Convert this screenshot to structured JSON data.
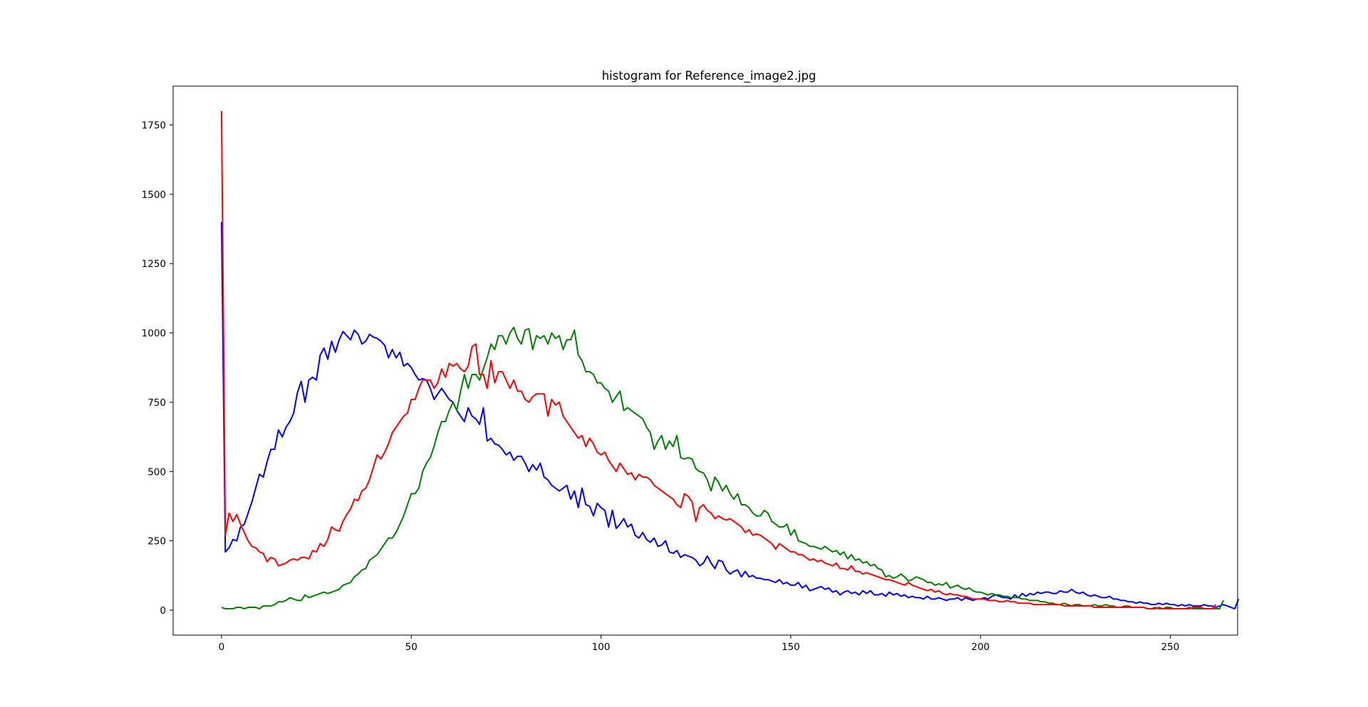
{
  "chart_data": {
    "type": "line",
    "title": "histogram for Reference_image2.jpg",
    "xlabel": "",
    "ylabel": "",
    "xlim": [
      -12.75,
      267.75
    ],
    "ylim": [
      -90,
      1890
    ],
    "xticks": [
      0,
      50,
      100,
      150,
      200,
      250
    ],
    "yticks": [
      0,
      250,
      500,
      750,
      1000,
      1250,
      1500,
      1750
    ],
    "grid": false,
    "legend": "none",
    "x": "0..255 (one value per bin)",
    "series": [
      {
        "color": "#0000ff",
        "values": [
          1400,
          210,
          225,
          255,
          250,
          300,
          310,
          350,
          390,
          440,
          490,
          480,
          535,
          580,
          580,
          650,
          625,
          660,
          680,
          710,
          785,
          825,
          750,
          830,
          840,
          830,
          920,
          945,
          905,
          970,
          930,
          975,
          1005,
          990,
          975,
          1010,
          995,
          960,
          970,
          995,
          985,
          980,
          970,
          955,
          910,
          940,
          910,
          930,
          880,
          890,
          875,
          850,
          830,
          835,
          830,
          800,
          760,
          780,
          800,
          780,
          760,
          750,
          720,
          700,
          680,
          730,
          700,
          690,
          670,
          730,
          610,
          620,
          600,
          595,
          580,
          560,
          570,
          540,
          555,
          555,
          530,
          500,
          525,
          505,
          530,
          480,
          470,
          450,
          440,
          430,
          440,
          450,
          400,
          430,
          370,
          440,
          380,
          375,
          340,
          385,
          370,
          360,
          300,
          360,
          295,
          310,
          330,
          300,
          310,
          270,
          260,
          280,
          255,
          245,
          260,
          230,
          235,
          250,
          210,
          205,
          215,
          190,
          200,
          195,
          190,
          180,
          160,
          170,
          195,
          170,
          150,
          180,
          175,
          145,
          130,
          140,
          145,
          120,
          140,
          120,
          125,
          115,
          115,
          110,
          110,
          105,
          100,
          110,
          95,
          100,
          90,
          90,
          100,
          80,
          90,
          70,
          75,
          80,
          85,
          75,
          80,
          65,
          70,
          55,
          65,
          70,
          60,
          65,
          55,
          70,
          60,
          70,
          55,
          55,
          60,
          50,
          65,
          55,
          60,
          50,
          55,
          45,
          50,
          45,
          45,
          40,
          50,
          40,
          40,
          45,
          40,
          35,
          40,
          40,
          45,
          35,
          45,
          40,
          35,
          40,
          40,
          45,
          40,
          50,
          55,
          50,
          45,
          45,
          40,
          55,
          45,
          60,
          50,
          60,
          55,
          65,
          60,
          65,
          65,
          60,
          60,
          70,
          65,
          65,
          75,
          65,
          60,
          65,
          55,
          50,
          55,
          50,
          45,
          45,
          50,
          40,
          40,
          35,
          35,
          30,
          30,
          25,
          30,
          25,
          25,
          20,
          20,
          25,
          20,
          25,
          20,
          20,
          15,
          20,
          15,
          20,
          15,
          15,
          15,
          20,
          15,
          15,
          10,
          15,
          20,
          15,
          10,
          5,
          40
        ]
      },
      {
        "color": "#008000",
        "values": [
          10,
          5,
          5,
          5,
          10,
          10,
          5,
          10,
          10,
          10,
          5,
          15,
          15,
          15,
          20,
          30,
          30,
          35,
          45,
          40,
          35,
          35,
          55,
          45,
          50,
          55,
          60,
          65,
          60,
          65,
          70,
          75,
          90,
          95,
          100,
          120,
          130,
          145,
          150,
          180,
          190,
          200,
          220,
          240,
          260,
          260,
          280,
          310,
          340,
          380,
          420,
          420,
          440,
          500,
          530,
          550,
          590,
          640,
          680,
          680,
          720,
          750,
          720,
          790,
          850,
          800,
          850,
          850,
          830,
          870,
          910,
          960,
          940,
          990,
          990,
          960,
          1000,
          1020,
          980,
          960,
          1010,
          1015,
          940,
          990,
          980,
          990,
          960,
          1000,
          980,
          990,
          940,
          975,
          975,
          1010,
          920,
          900,
          860,
          860,
          850,
          820,
          820,
          800,
          790,
          750,
          770,
          790,
          720,
          730,
          720,
          710,
          700,
          690,
          660,
          640,
          580,
          610,
          630,
          580,
          610,
          590,
          630,
          550,
          545,
          550,
          545,
          510,
          500,
          495,
          470,
          430,
          480,
          460,
          430,
          450,
          420,
          400,
          420,
          380,
          380,
          370,
          350,
          340,
          340,
          360,
          350,
          320,
          310,
          300,
          300,
          310,
          270,
          290,
          250,
          245,
          240,
          230,
          230,
          225,
          220,
          230,
          220,
          210,
          215,
          200,
          210,
          185,
          200,
          180,
          185,
          170,
          175,
          160,
          165,
          150,
          145,
          120,
          125,
          115,
          120,
          130,
          120,
          105,
          110,
          120,
          115,
          110,
          100,
          100,
          90,
          95,
          90,
          100,
          80,
          85,
          90,
          80,
          75,
          80,
          70,
          65,
          65,
          60,
          55,
          60,
          55,
          55,
          50,
          50,
          45,
          45,
          45,
          40,
          40,
          35,
          35,
          35,
          30,
          30,
          25,
          25,
          20,
          20,
          25,
          20,
          15,
          20,
          20,
          15,
          15,
          15,
          20,
          15,
          15,
          20,
          15,
          15,
          10,
          10,
          15,
          15,
          10,
          10,
          10,
          10,
          5,
          5,
          10,
          5,
          5,
          10,
          10,
          5,
          5,
          5,
          5,
          10,
          5,
          5,
          5,
          5,
          5,
          5,
          5,
          5,
          35
        ]
      },
      {
        "color": "#ff0000",
        "values": [
          1800,
          270,
          350,
          320,
          345,
          310,
          280,
          250,
          230,
          225,
          210,
          205,
          175,
          190,
          185,
          160,
          165,
          170,
          180,
          185,
          180,
          190,
          190,
          185,
          215,
          210,
          240,
          230,
          255,
          300,
          290,
          285,
          320,
          345,
          365,
          400,
          395,
          430,
          440,
          470,
          515,
          560,
          545,
          570,
          600,
          640,
          660,
          680,
          700,
          710,
          760,
          760,
          800,
          830,
          830,
          830,
          800,
          820,
          870,
          840,
          890,
          880,
          890,
          870,
          860,
          880,
          950,
          960,
          850,
          850,
          800,
          900,
          820,
          860,
          860,
          830,
          800,
          830,
          790,
          790,
          760,
          750,
          770,
          780,
          780,
          780,
          700,
          760,
          740,
          750,
          700,
          680,
          660,
          640,
          620,
          630,
          590,
          620,
          600,
          570,
          560,
          570,
          540,
          520,
          500,
          530,
          510,
          490,
          495,
          470,
          490,
          480,
          480,
          470,
          450,
          440,
          430,
          420,
          410,
          400,
          380,
          370,
          420,
          410,
          390,
          320,
          370,
          380,
          360,
          350,
          330,
          340,
          330,
          325,
          330,
          320,
          310,
          300,
          280,
          290,
          270,
          275,
          270,
          260,
          250,
          240,
          220,
          240,
          230,
          220,
          210,
          210,
          200,
          200,
          190,
          180,
          185,
          175,
          180,
          170,
          165,
          160,
          170,
          150,
          150,
          145,
          160,
          140,
          140,
          130,
          135,
          130,
          125,
          120,
          115,
          110,
          110,
          105,
          100,
          95,
          90,
          100,
          90,
          85,
          80,
          75,
          70,
          75,
          65,
          70,
          60,
          55,
          60,
          55,
          55,
          50,
          50,
          45,
          40,
          40,
          40,
          40,
          35,
          35,
          35,
          30,
          30,
          35,
          30,
          30,
          25,
          25,
          25,
          25,
          20,
          20,
          20,
          20,
          20,
          20,
          20,
          20,
          15,
          15,
          15,
          15,
          15,
          15,
          15,
          15,
          10,
          10,
          10,
          10,
          10,
          10,
          10,
          10,
          10,
          10,
          10,
          10,
          10,
          10,
          5,
          5,
          5,
          10,
          5,
          5,
          5,
          5,
          5,
          5,
          5,
          5,
          10,
          10,
          10,
          5,
          5,
          5,
          20
        ]
      }
    ]
  }
}
